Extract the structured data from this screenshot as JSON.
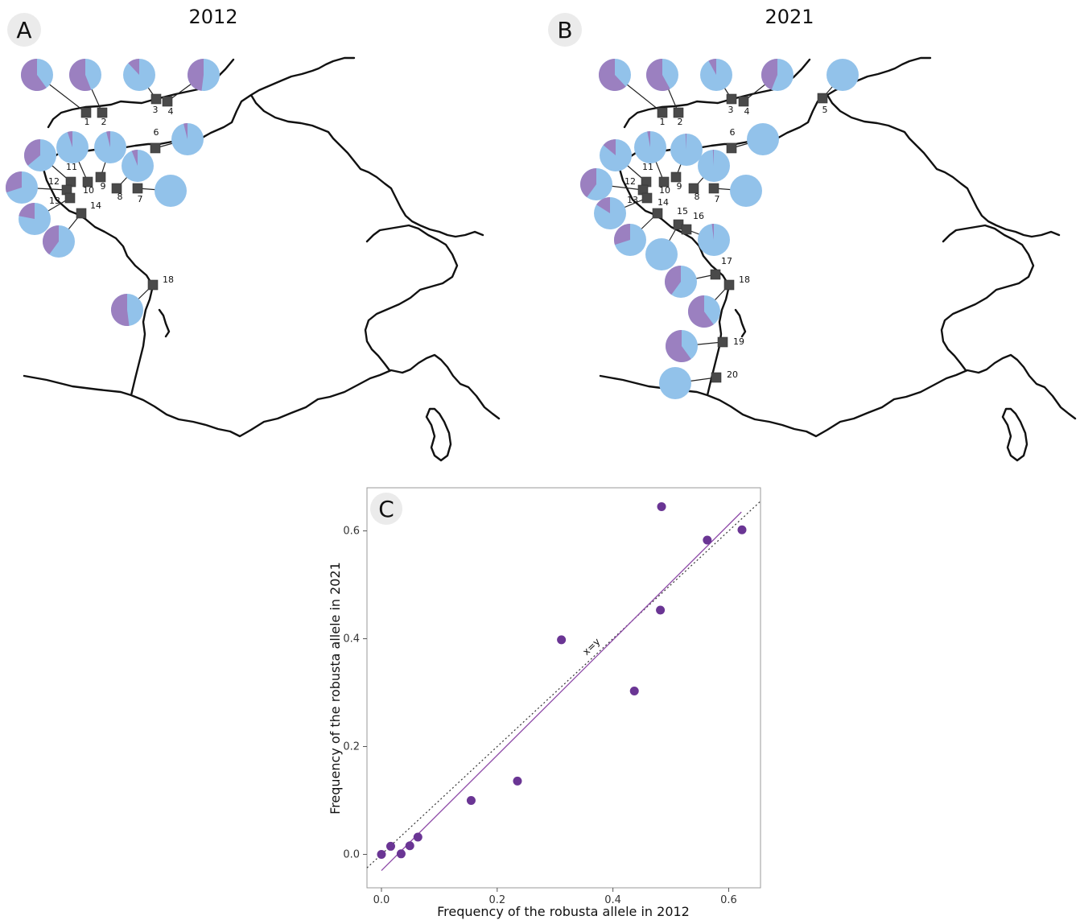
{
  "colors": {
    "robusta": "#9b80c0",
    "other": "#92c2ea",
    "site_marker": "#4a4a4a",
    "scatter_point": "#6a3594",
    "fit_line": "#8e4aa8",
    "panel_badge": "#ebebeb"
  },
  "panel_a": {
    "letter": "A",
    "title": "2012",
    "sites": [
      {
        "label": "1",
        "robusta": 0.6
      },
      {
        "label": "2",
        "robusta": 0.56
      },
      {
        "label": "3",
        "robusta": 0.12
      },
      {
        "label": "4",
        "robusta": 0.48
      },
      {
        "label": "6",
        "robusta": 0.04
      },
      {
        "label": "7",
        "robusta": 0.0
      },
      {
        "label": "8",
        "robusta": 0.06
      },
      {
        "label": "9",
        "robusta": 0.04
      },
      {
        "label": "10",
        "robusta": 0.05
      },
      {
        "label": "11",
        "robusta": 0.36
      },
      {
        "label": "12",
        "robusta": 0.3
      },
      {
        "label": "13",
        "robusta": 0.22
      },
      {
        "label": "14",
        "robusta": 0.4
      },
      {
        "label": "18",
        "robusta": 0.52
      }
    ]
  },
  "panel_b": {
    "letter": "B",
    "title": "2021",
    "sites": [
      {
        "label": "1",
        "robusta": 0.62
      },
      {
        "label": "2",
        "robusta": 0.58
      },
      {
        "label": "3",
        "robusta": 0.08
      },
      {
        "label": "4",
        "robusta": 0.44
      },
      {
        "label": "5",
        "robusta": 0.0
      },
      {
        "label": "6",
        "robusta": 0.0
      },
      {
        "label": "7",
        "robusta": 0.0
      },
      {
        "label": "8",
        "robusta": 0.01
      },
      {
        "label": "9",
        "robusta": 0.01
      },
      {
        "label": "10",
        "robusta": 0.03
      },
      {
        "label": "11",
        "robusta": 0.14
      },
      {
        "label": "12",
        "robusta": 0.4
      },
      {
        "label": "13",
        "robusta": 0.16
      },
      {
        "label": "14",
        "robusta": 0.3
      },
      {
        "label": "15",
        "robusta": 0.0
      },
      {
        "label": "16",
        "robusta": 0.02
      },
      {
        "label": "17",
        "robusta": 0.4
      },
      {
        "label": "18",
        "robusta": 0.6
      },
      {
        "label": "19",
        "robusta": 0.6
      },
      {
        "label": "20",
        "robusta": 0.0
      }
    ]
  },
  "chart_data": {
    "type": "scatter",
    "panel_letter": "C",
    "xlabel": "Frequency of the robusta allele in 2012",
    "ylabel": "Frequency of the robusta allele in 2021",
    "xlim": [
      -0.025,
      0.655
    ],
    "ylim": [
      -0.062,
      0.68
    ],
    "xticks": [
      "0.0",
      "0.2",
      "0.4",
      "0.6"
    ],
    "yticks": [
      "0.0",
      "0.2",
      "0.4",
      "0.6"
    ],
    "reference_line_label": "x=y",
    "fit_line": {
      "x": [
        0.0,
        0.622
      ],
      "y": [
        -0.03,
        0.635
      ]
    },
    "points": [
      {
        "x": 0.0,
        "y": 0.0
      },
      {
        "x": 0.016,
        "y": 0.015
      },
      {
        "x": 0.034,
        "y": 0.001
      },
      {
        "x": 0.049,
        "y": 0.016
      },
      {
        "x": 0.063,
        "y": 0.032
      },
      {
        "x": 0.155,
        "y": 0.1
      },
      {
        "x": 0.235,
        "y": 0.136
      },
      {
        "x": 0.311,
        "y": 0.398
      },
      {
        "x": 0.437,
        "y": 0.303
      },
      {
        "x": 0.482,
        "y": 0.453
      },
      {
        "x": 0.484,
        "y": 0.645
      },
      {
        "x": 0.563,
        "y": 0.583
      },
      {
        "x": 0.623,
        "y": 0.602
      }
    ]
  }
}
